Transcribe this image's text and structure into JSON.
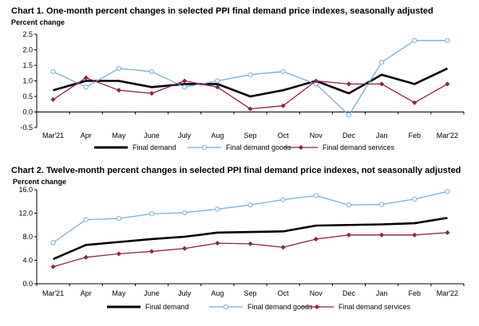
{
  "chart_data": [
    {
      "type": "line",
      "title": "Chart 1. One-month percent changes in selected PPI final demand price indexes, seasonally adjusted",
      "ylabel": "Percent change",
      "xlabel": "",
      "categories": [
        "Mar'21",
        "Apr",
        "May",
        "June",
        "July",
        "Aug",
        "Sep",
        "Oct",
        "Nov",
        "Dec",
        "Jan",
        "Feb",
        "Mar'22"
      ],
      "ylim": [
        -0.5,
        2.5
      ],
      "yticks": [
        -0.5,
        0.0,
        0.5,
        1.0,
        1.5,
        2.0,
        2.5
      ],
      "ytick_labels": [
        "-0.5",
        "0.0",
        "0.5",
        "1.0",
        "1.5",
        "2.0",
        "2.5"
      ],
      "grid": false,
      "legend_position": "bottom",
      "series": [
        {
          "name": "Final demand",
          "color": "#000000",
          "marker": "none",
          "values": [
            0.7,
            1.0,
            1.0,
            0.8,
            0.9,
            0.9,
            0.5,
            0.7,
            1.0,
            0.6,
            1.2,
            0.9,
            1.4
          ]
        },
        {
          "name": "Final demand goods",
          "color": "#7aaedc",
          "marker": "circle",
          "values": [
            1.3,
            0.8,
            1.4,
            1.3,
            0.8,
            1.0,
            1.2,
            1.3,
            0.9,
            -0.1,
            1.6,
            2.3,
            2.3
          ]
        },
        {
          "name": "Final demand services",
          "color": "#8b2252",
          "marker": "diamond",
          "values": [
            0.4,
            1.1,
            0.7,
            0.6,
            1.0,
            0.8,
            0.1,
            0.2,
            1.0,
            0.9,
            0.9,
            0.3,
            0.9
          ]
        }
      ]
    },
    {
      "type": "line",
      "title": "Chart 2. Twelve-month percent changes in selected PPI final demand price indexes, not seasonally adjusted",
      "ylabel": "Percent change",
      "xlabel": "",
      "categories": [
        "Mar'21",
        "Apr",
        "May",
        "June",
        "July",
        "Aug",
        "Sep",
        "Oct",
        "Nov",
        "Dec",
        "Jan",
        "Feb",
        "Mar'22"
      ],
      "ylim": [
        0.0,
        16.0
      ],
      "yticks": [
        0.0,
        4.0,
        8.0,
        12.0,
        16.0
      ],
      "ytick_labels": [
        "0.0",
        "4.0",
        "8.0",
        "12.0",
        "16.0"
      ],
      "grid": false,
      "legend_position": "bottom",
      "series": [
        {
          "name": "Final demand",
          "color": "#000000",
          "marker": "none",
          "values": [
            4.2,
            6.6,
            7.1,
            7.6,
            8.0,
            8.7,
            8.8,
            8.9,
            9.9,
            10.0,
            10.1,
            10.3,
            11.2
          ]
        },
        {
          "name": "Final demand goods",
          "color": "#7aaedc",
          "marker": "circle",
          "values": [
            7.0,
            10.9,
            11.1,
            11.9,
            12.1,
            12.7,
            13.4,
            14.3,
            15.0,
            13.4,
            13.5,
            14.4,
            15.7
          ]
        },
        {
          "name": "Final demand services",
          "color": "#8b2252",
          "marker": "diamond",
          "values": [
            2.9,
            4.5,
            5.1,
            5.5,
            6.0,
            6.9,
            6.8,
            6.2,
            7.6,
            8.3,
            8.3,
            8.3,
            8.7
          ]
        }
      ]
    }
  ]
}
